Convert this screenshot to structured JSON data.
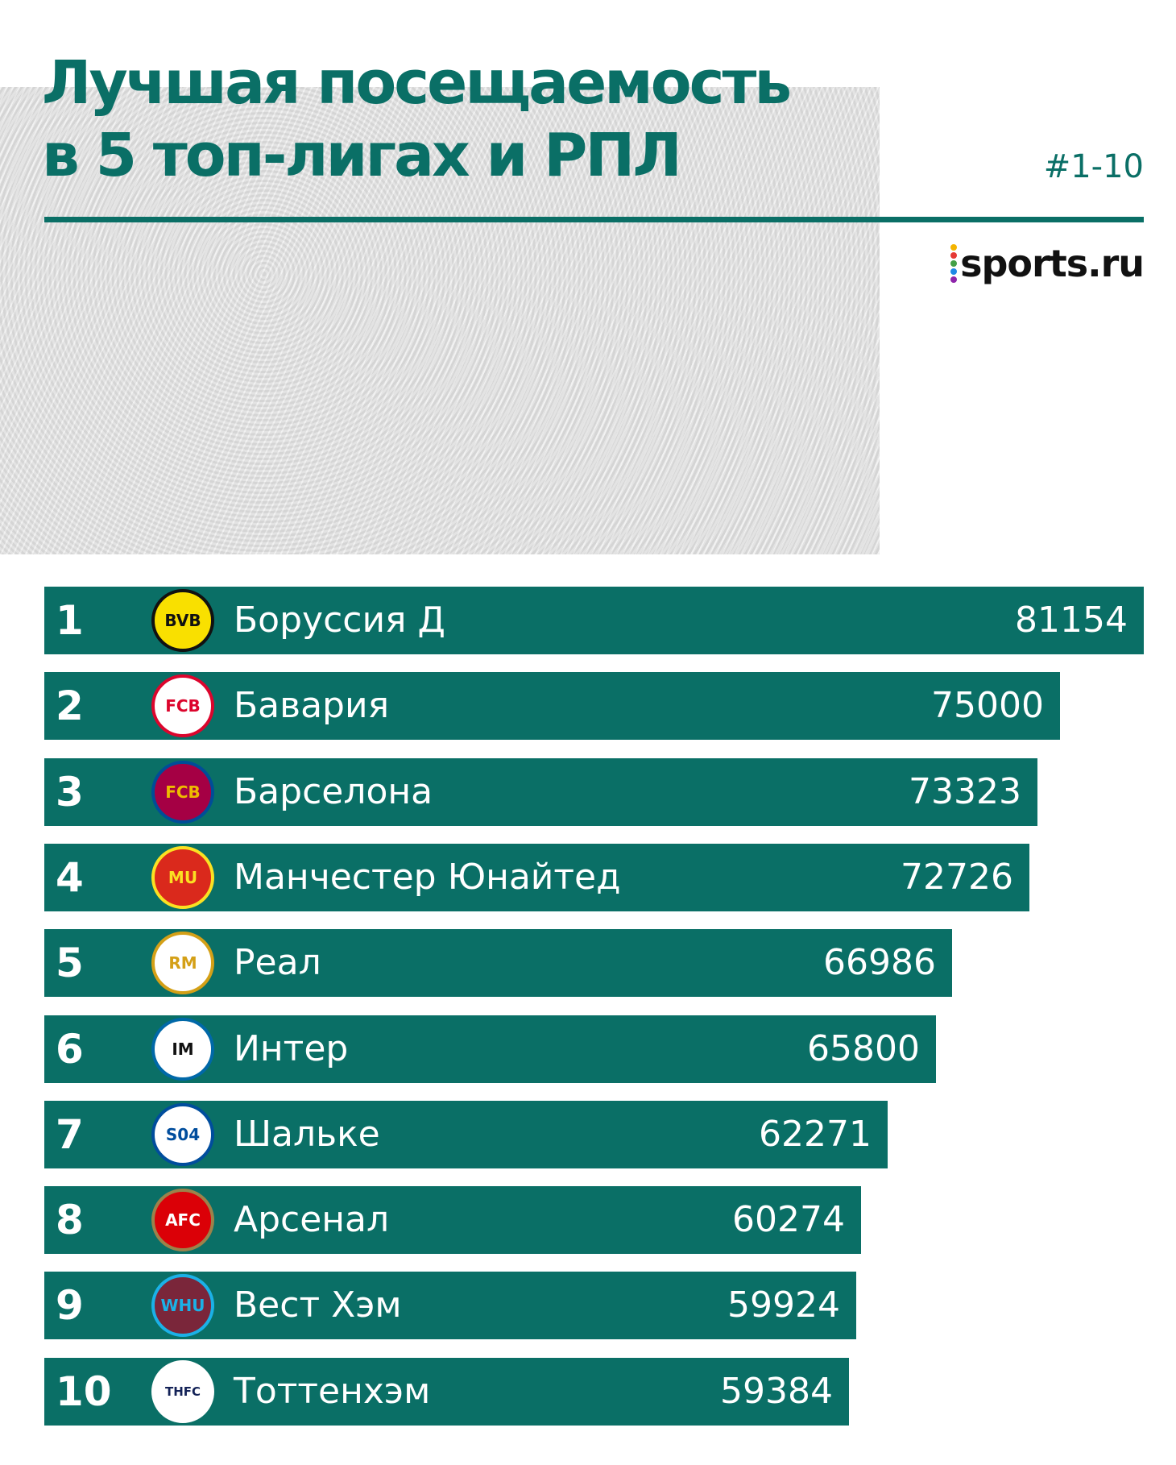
{
  "title_line1": "Лучшая посещаемость",
  "title_line2": "в 5 топ-лигах и РПЛ",
  "subtitle": "#1-10",
  "brand": "sports.ru",
  "colors": {
    "bar": "#0a6f66",
    "text_on_bar": "#ffffff",
    "title": "#0a6f66"
  },
  "chart_data": {
    "type": "bar",
    "orientation": "horizontal",
    "title": "Лучшая посещаемость в 5 топ-лигах и РПЛ",
    "categories": [
      "Боруссия Д",
      "Бавария",
      "Барселона",
      "Манчестер Юнайтед",
      "Реал",
      "Интер",
      "Шальке",
      "Арсенал",
      "Вест Хэм",
      "Тоттенхэм"
    ],
    "ranks": [
      "1",
      "2",
      "3",
      "4",
      "5",
      "6",
      "7",
      "8",
      "9",
      "10"
    ],
    "values": [
      81154,
      75000,
      73323,
      72726,
      66986,
      65800,
      62271,
      60274,
      59924,
      59384
    ],
    "crest_icons": [
      "bvb-crest-icon",
      "bayern-crest-icon",
      "barcelona-crest-icon",
      "manutd-crest-icon",
      "real-crest-icon",
      "inter-crest-icon",
      "schalke-crest-icon",
      "arsenal-crest-icon",
      "westham-crest-icon",
      "tottenham-crest-icon"
    ],
    "crest_styles": [
      {
        "bg": "#f9e000",
        "fg": "#111111",
        "border": "#111111",
        "text": "BVB"
      },
      {
        "bg": "#ffffff",
        "fg": "#dc052d",
        "border": "#dc052d",
        "text": "FCB"
      },
      {
        "bg": "#a50044",
        "fg": "#edbb00",
        "border": "#004d98",
        "text": "FCB"
      },
      {
        "bg": "#da291c",
        "fg": "#fbe122",
        "border": "#fbe122",
        "text": "MU"
      },
      {
        "bg": "#ffffff",
        "fg": "#d4a017",
        "border": "#d4a017",
        "text": "RM"
      },
      {
        "bg": "#ffffff",
        "fg": "#111111",
        "border": "#0068a8",
        "text": "IM"
      },
      {
        "bg": "#ffffff",
        "fg": "#004d9d",
        "border": "#004d9d",
        "text": "S04"
      },
      {
        "bg": "#db0007",
        "fg": "#ffffff",
        "border": "#9c824a",
        "text": "AFC"
      },
      {
        "bg": "#7a263a",
        "fg": "#1bb1e7",
        "border": "#1bb1e7",
        "text": "WHU"
      },
      {
        "bg": "#ffffff",
        "fg": "#132257",
        "border": "#ffffff",
        "text": "THFC"
      }
    ],
    "xlim": [
      0,
      81154
    ],
    "grid": false,
    "legend": "none"
  }
}
